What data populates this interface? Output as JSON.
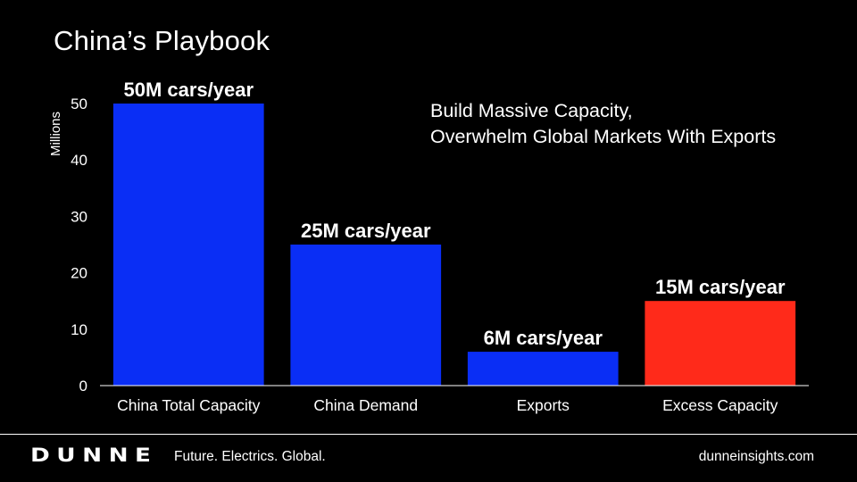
{
  "slide": {
    "title": "China’s Playbook",
    "headline": [
      "Build Massive Capacity,",
      "Overwhelm Global Markets With Exports"
    ]
  },
  "chart_data": {
    "type": "bar",
    "title": "",
    "xlabel": "",
    "ylabel": "Millions",
    "ylim": [
      0,
      50
    ],
    "yticks": [
      0,
      10,
      20,
      30,
      40,
      50
    ],
    "grid": false,
    "categories": [
      "China Total Capacity",
      "China Demand",
      "Exports",
      "Excess Capacity"
    ],
    "values": [
      50,
      25,
      6,
      15
    ],
    "data_labels": [
      "50M cars/year",
      "25M cars/year",
      "6M cars/year",
      "15M cars/year"
    ],
    "colors": [
      "#0A2EF5",
      "#0A2EF5",
      "#0A2EF5",
      "#FF2A1A"
    ]
  },
  "footer": {
    "logo": "DUNNE",
    "tagline": "Future. Electrics. Global.",
    "website": "dunneinsights.com"
  }
}
